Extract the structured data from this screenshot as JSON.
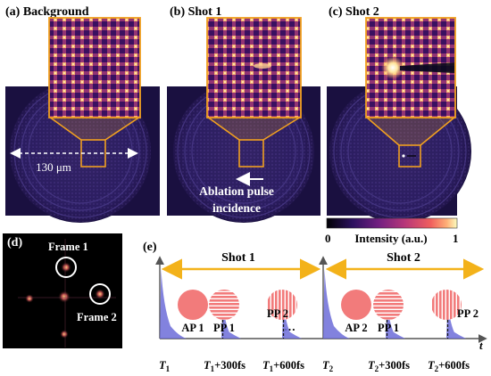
{
  "panels": {
    "a": {
      "title": "(a) Background",
      "scale_label": "130 μm"
    },
    "b": {
      "title": "(b) Shot 1",
      "annotation": "Ablation pulse\nincidence"
    },
    "c": {
      "title": "(c) Shot 2"
    },
    "d": {
      "title": "(d)",
      "frame1_label": "Frame 1",
      "frame2_label": "Frame 2"
    },
    "e": {
      "title": "(e)",
      "shot1_label": "Shot 1",
      "shot2_label": "Shot 2",
      "pulses": [
        {
          "disc_label": "AP 1",
          "tick_main": "T",
          "tick_sub": "1",
          "tick_tail": ""
        },
        {
          "disc_label": "PP 1",
          "tick_main": "T",
          "tick_sub": "1",
          "tick_tail": "+300fs"
        },
        {
          "disc_label": "PP 2",
          "tick_main": "T",
          "tick_sub": "1",
          "tick_tail": "+600fs"
        },
        {
          "disc_label": "AP 2",
          "tick_main": "T",
          "tick_sub": "2",
          "tick_tail": ""
        },
        {
          "disc_label": "PP 1",
          "tick_main": "T",
          "tick_sub": "2",
          "tick_tail": "+300fs"
        },
        {
          "disc_label": "PP 2",
          "tick_main": "T",
          "tick_sub": "2",
          "tick_tail": "+600fs"
        }
      ],
      "ellipsis": "…",
      "time_axis_label": "t"
    }
  },
  "colorbar": {
    "min_label": "0",
    "max_label": "1",
    "title": "Intensity (a.u.)"
  },
  "colors": {
    "frame_orange": "#f0a020",
    "arrow_orange": "#f3b21a",
    "pulse_fill": "#6c6cd8",
    "disc_fill": "#f27b7b",
    "axis": "#555555"
  }
}
